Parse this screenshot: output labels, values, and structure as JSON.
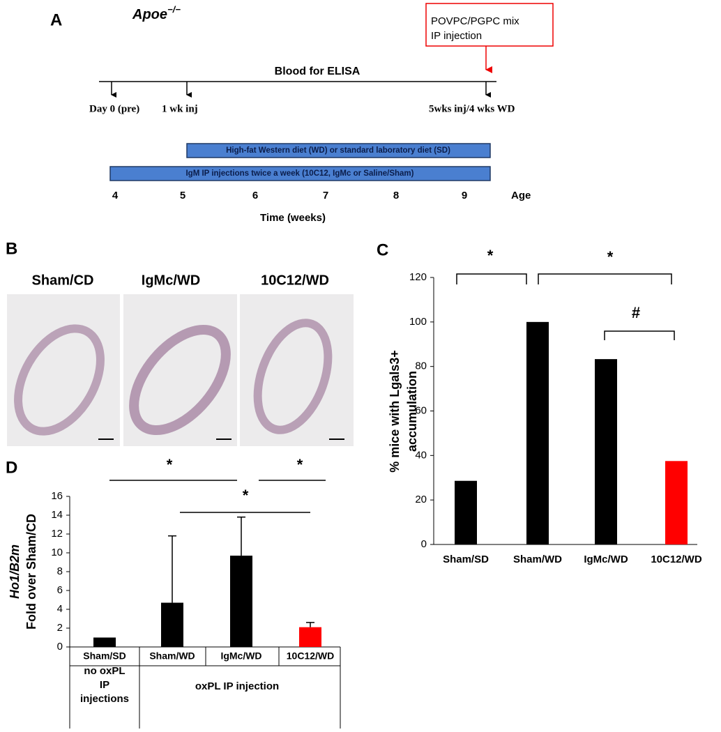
{
  "panel_a": {
    "label": "A",
    "strain": "Apoe",
    "strain_superscript": "−/−",
    "box_lines": [
      "POVPC/PGPC mix",
      "IP injection"
    ],
    "timeline_title": "Blood for ELISA",
    "timepoints": [
      "Day 0 (pre)",
      "1 wk inj",
      "5wks inj/4 wks WD"
    ],
    "bars": [
      "High-fat  Western diet (WD)  or standard laboratory  diet (SD)",
      "IgM IP injections twice a week (10C12, IgMc or Saline/Sham)"
    ],
    "age_ticks": [
      4,
      5,
      6,
      7,
      8,
      9
    ],
    "age_label": "Age",
    "axis_label": "Time (weeks)"
  },
  "panel_b": {
    "label": "B",
    "images": [
      "Sham/CD",
      "IgMc/WD",
      "10C12/WD"
    ]
  },
  "chart_data": [
    {
      "type": "bar",
      "panel": "C",
      "ylabel": [
        "% mice with Lgals3+",
        "accumulation"
      ],
      "categories": [
        "Sham/SD",
        "Sham/WD",
        "IgMc/WD",
        "10C12/WD"
      ],
      "values": [
        28.6,
        100,
        83.3,
        37.5
      ],
      "colors": [
        "#000000",
        "#000000",
        "#000000",
        "#ff0000"
      ],
      "ylim": [
        0,
        120
      ],
      "yticks": [
        0,
        20,
        40,
        60,
        80,
        100,
        120
      ],
      "annotations": [
        {
          "text": "*"
        },
        {
          "text": "*"
        },
        {
          "text": "#"
        }
      ]
    },
    {
      "type": "bar",
      "panel": "D",
      "ylabel": [
        "Ho1/B2m",
        "Fold over Sham/CD"
      ],
      "categories": [
        "Sham/SD",
        "Sham/WD",
        "IgMc/WD",
        "10C12/WD"
      ],
      "values": [
        1.0,
        4.7,
        9.7,
        2.1
      ],
      "errors": [
        0,
        7.1,
        4.1,
        0.5
      ],
      "colors": [
        "#000000",
        "#000000",
        "#000000",
        "#ff0000"
      ],
      "ylim": [
        0,
        16
      ],
      "yticks": [
        0,
        2,
        4,
        6,
        8,
        10,
        12,
        14,
        16
      ],
      "groups": [
        [
          "no oxPL",
          "IP",
          "injections"
        ],
        [
          "oxPL IP injection"
        ]
      ],
      "annotations": [
        {
          "text": "*"
        },
        {
          "text": "*"
        },
        {
          "text": "*"
        }
      ]
    }
  ]
}
